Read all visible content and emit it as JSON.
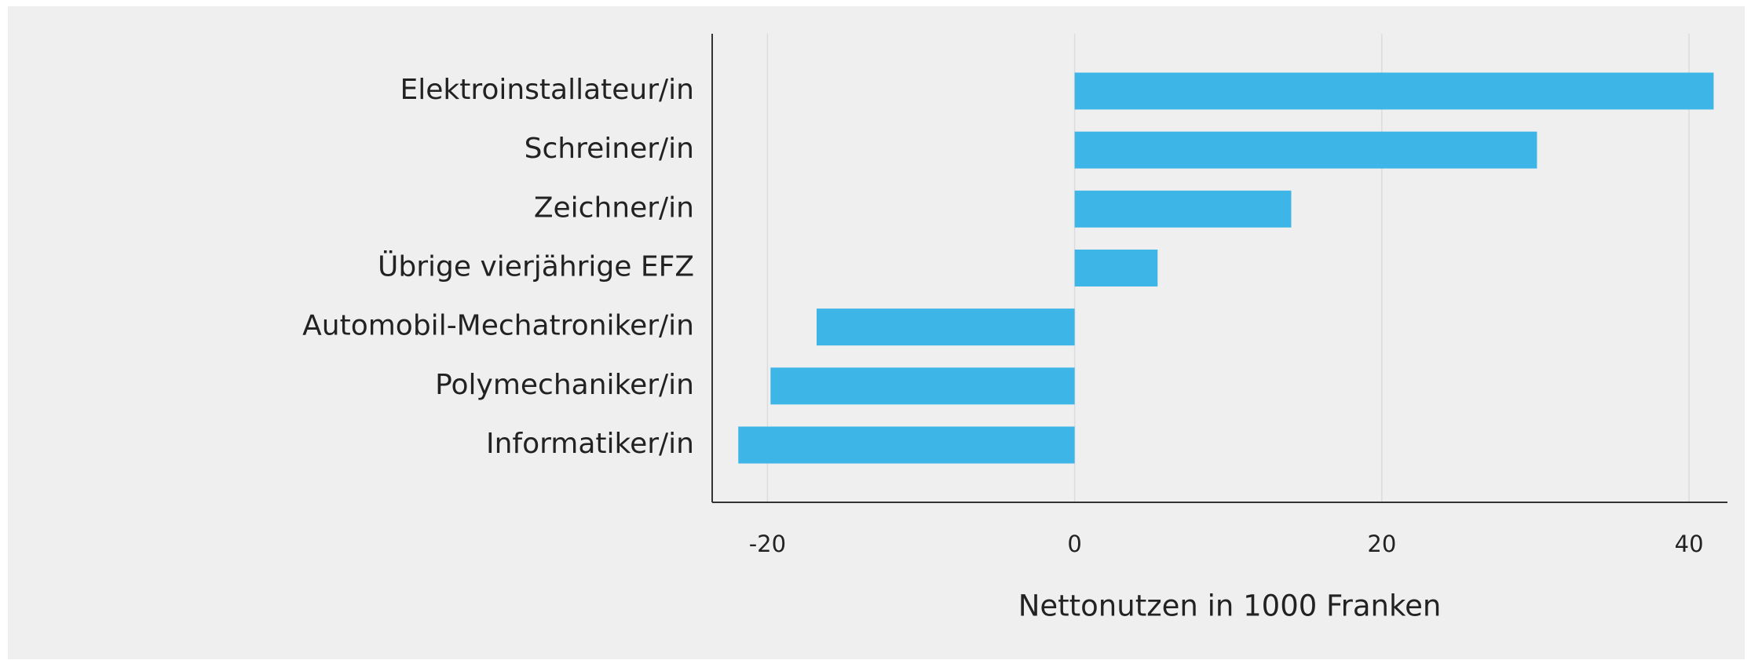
{
  "chart_data": {
    "type": "bar",
    "orientation": "horizontal",
    "x_label": "Nettonutzen in 1000 Franken",
    "categories": [
      "Elektroinstallateur/in",
      "Schreiner/in",
      "Zeichner/in",
      "Übrige vierjährige EFZ",
      "Automobil-Mechatroniker/in",
      "Polymechaniker/in",
      "Informatiker/in"
    ],
    "values": [
      41.6,
      30.1,
      14.1,
      5.4,
      -16.8,
      -19.8,
      -21.9
    ],
    "color": "#3db5e6",
    "xlim": [
      -23.6,
      42.5
    ],
    "xticks": [
      -20,
      0,
      20,
      40
    ],
    "grid": true
  }
}
